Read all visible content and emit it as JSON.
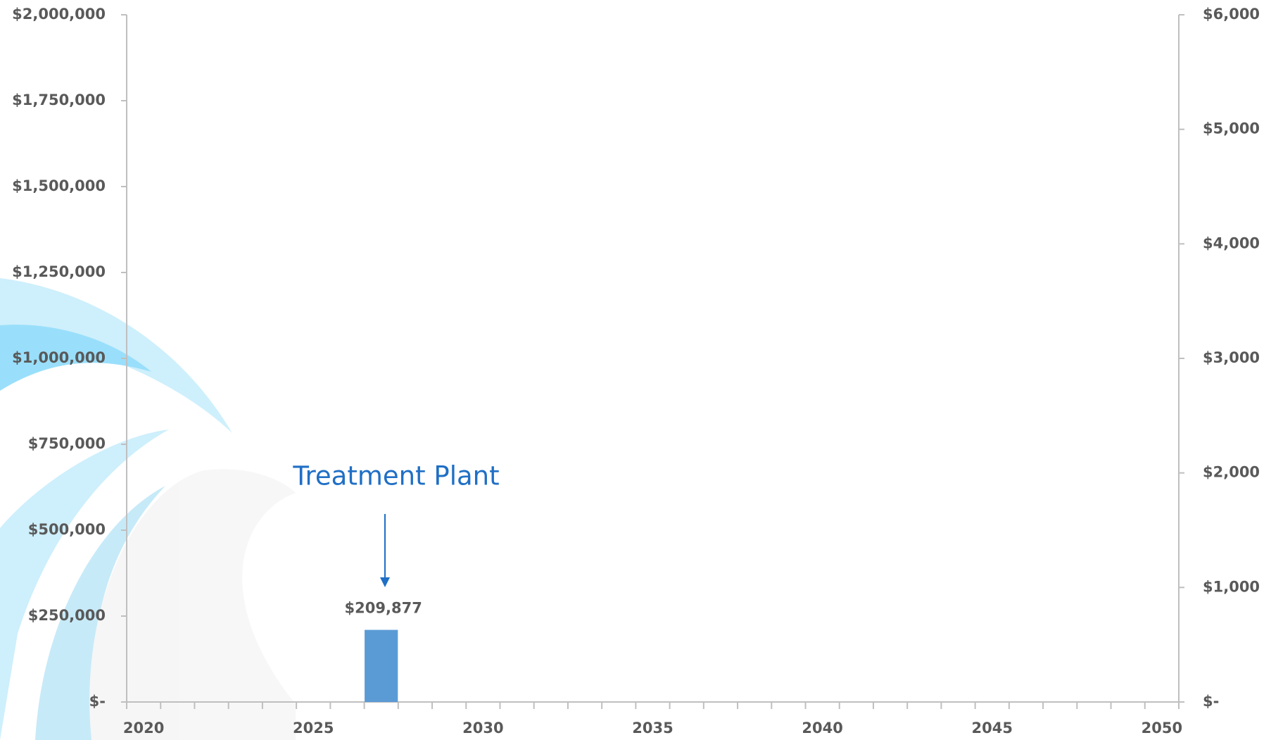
{
  "chart_data": {
    "type": "bar",
    "categories": [
      "2020",
      null,
      null,
      null,
      null,
      "2025",
      null,
      null,
      null,
      null,
      "2030",
      null,
      null,
      null,
      null,
      "2035",
      null,
      null,
      null,
      null,
      "2040",
      null,
      null,
      null,
      null,
      "2045",
      null,
      null,
      null,
      null,
      "2050"
    ],
    "values": [
      null,
      null,
      null,
      null,
      null,
      null,
      null,
      209877,
      null,
      null,
      null,
      null,
      null,
      null,
      null,
      null,
      null,
      null,
      null,
      null,
      null,
      null,
      null,
      null,
      null,
      null,
      null,
      null,
      null,
      null,
      null
    ],
    "value_labels": [
      null,
      null,
      null,
      null,
      null,
      null,
      null,
      "$209,877",
      null,
      null,
      null,
      null,
      null,
      null,
      null,
      null,
      null,
      null,
      null,
      null,
      null,
      null,
      null,
      null,
      null,
      null,
      null,
      null,
      null,
      null,
      null
    ],
    "color": "#5b9bd5",
    "ylim": [
      0,
      2000000
    ],
    "yticks": [
      {
        "value": 0,
        "label": "$-"
      },
      {
        "value": 250000,
        "label": "$250,000"
      },
      {
        "value": 500000,
        "label": "$500,000"
      },
      {
        "value": 750000,
        "label": "$750,000"
      },
      {
        "value": 1000000,
        "label": "$1,000,000"
      },
      {
        "value": 1250000,
        "label": "$1,250,000"
      },
      {
        "value": 1500000,
        "label": "$1,500,000"
      },
      {
        "value": 1750000,
        "label": "$1,750,000"
      },
      {
        "value": 2000000,
        "label": "$2,000,000"
      }
    ],
    "y2lim": [
      0,
      6000
    ],
    "y2ticks": [
      {
        "value": 0,
        "label": "$-"
      },
      {
        "value": 1000,
        "label": "$1,000"
      },
      {
        "value": 2000,
        "label": "$2,000"
      },
      {
        "value": 3000,
        "label": "$3,000"
      },
      {
        "value": 4000,
        "label": "$4,000"
      },
      {
        "value": 5000,
        "label": "$5,000"
      },
      {
        "value": 6000,
        "label": "$6,000"
      }
    ],
    "annotation": "Treatment Plant",
    "annotation_index": 7,
    "grid": false
  }
}
